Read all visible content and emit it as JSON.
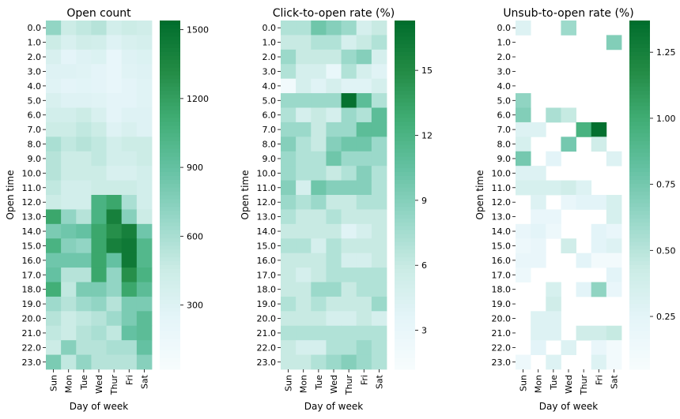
{
  "figure": {
    "rows": [
      "0.0",
      "1.0",
      "2.0",
      "3.0",
      "4.0",
      "5.0",
      "6.0",
      "7.0",
      "8.0",
      "9.0",
      "10.0",
      "11.0",
      "12.0",
      "13.0",
      "14.0",
      "15.0",
      "16.0",
      "17.0",
      "18.0",
      "19.0",
      "20.0",
      "21.0",
      "22.0",
      "23.0"
    ],
    "cols": [
      "Sun",
      "Mon",
      "Tue",
      "Wed",
      "Thur",
      "Fri",
      "Sat"
    ],
    "xlabel": "Day of week",
    "ylabel": "Open time",
    "colormap": [
      "#f7fcfd",
      "#e5f5f9",
      "#ccece6",
      "#99d8c9",
      "#66c2a4",
      "#41ae76",
      "#238b45",
      "#006d2c"
    ]
  },
  "chart_data": [
    {
      "type": "heatmap",
      "title": "Open count",
      "xlabel": "Day of week",
      "ylabel": "Open time",
      "vmin": 20,
      "vmax": 1540,
      "colorbar_ticks": [
        300,
        600,
        900,
        1200,
        1500
      ],
      "colorbar_tick_labels": [
        "300",
        "600",
        "900",
        "1200",
        "1500"
      ],
      "values": [
        [
          700,
          450,
          500,
          550,
          400,
          450,
          420
        ],
        [
          450,
          350,
          420,
          400,
          300,
          350,
          380
        ],
        [
          350,
          250,
          300,
          320,
          200,
          300,
          320
        ],
        [
          300,
          300,
          280,
          250,
          200,
          280,
          300
        ],
        [
          280,
          250,
          260,
          250,
          200,
          250,
          280
        ],
        [
          350,
          300,
          300,
          280,
          250,
          250,
          280
        ],
        [
          400,
          400,
          450,
          350,
          250,
          300,
          300
        ],
        [
          450,
          450,
          500,
          450,
          300,
          350,
          300
        ],
        [
          600,
          500,
          550,
          500,
          400,
          450,
          450
        ],
        [
          550,
          450,
          450,
          500,
          400,
          400,
          450
        ],
        [
          550,
          450,
          450,
          450,
          350,
          350,
          400
        ],
        [
          500,
          400,
          400,
          450,
          450,
          450,
          400
        ],
        [
          450,
          400,
          400,
          1050,
          1150,
          600,
          400
        ],
        [
          1150,
          700,
          550,
          1050,
          1400,
          750,
          450
        ],
        [
          800,
          850,
          900,
          1150,
          1300,
          1400,
          850
        ],
        [
          1050,
          750,
          700,
          1150,
          1400,
          1450,
          1000
        ],
        [
          850,
          850,
          850,
          1150,
          900,
          1450,
          1000
        ],
        [
          900,
          550,
          550,
          1150,
          700,
          1300,
          1050
        ],
        [
          1100,
          500,
          800,
          800,
          700,
          1150,
          950
        ],
        [
          650,
          550,
          650,
          700,
          550,
          800,
          800
        ],
        [
          550,
          450,
          500,
          550,
          650,
          800,
          950
        ],
        [
          500,
          450,
          550,
          600,
          500,
          900,
          950
        ],
        [
          450,
          750,
          550,
          550,
          600,
          600,
          900
        ],
        [
          800,
          500,
          700,
          550,
          550,
          550,
          750
        ]
      ]
    },
    {
      "type": "heatmap",
      "title": "Click-to-open rate (%)",
      "xlabel": "Day of week",
      "ylabel": "Open time",
      "vmin": 1.2,
      "vmax": 17.3,
      "colorbar_ticks": [
        3,
        6,
        9,
        12,
        15
      ],
      "colorbar_tick_labels": [
        "3",
        "6",
        "9",
        "12",
        "15"
      ],
      "values": [
        [
          7,
          7,
          10,
          9,
          8,
          5,
          6
        ],
        [
          6,
          6,
          7,
          7,
          5,
          6,
          7
        ],
        [
          8,
          6,
          6,
          6,
          8,
          9,
          5
        ],
        [
          7,
          5,
          5,
          3,
          7,
          5,
          4
        ],
        [
          2,
          5,
          4,
          5,
          4,
          4,
          5
        ],
        [
          8,
          8,
          8,
          8,
          17,
          11,
          7
        ],
        [
          7,
          5,
          6,
          5,
          8,
          7,
          11
        ],
        [
          8,
          8,
          6,
          8,
          8,
          11,
          11
        ],
        [
          9,
          7,
          6,
          9,
          10,
          10,
          8
        ],
        [
          8,
          7,
          7,
          10,
          8,
          8,
          8
        ],
        [
          8,
          7,
          7,
          6,
          7,
          9,
          7
        ],
        [
          9,
          5,
          10,
          9,
          9,
          9,
          7
        ],
        [
          8,
          7,
          8,
          6,
          6,
          7,
          7
        ],
        [
          7,
          6,
          6,
          7,
          6,
          6,
          6
        ],
        [
          6,
          6,
          6,
          6,
          4,
          5,
          6
        ],
        [
          7,
          7,
          5,
          7,
          6,
          6,
          6
        ],
        [
          6,
          6,
          6,
          7,
          5,
          5,
          6
        ],
        [
          6,
          5,
          6,
          7,
          7,
          7,
          7
        ],
        [
          6,
          6,
          8,
          8,
          6,
          7,
          7
        ],
        [
          7,
          6,
          7,
          6,
          6,
          6,
          8
        ],
        [
          6,
          6,
          6,
          5,
          5,
          6,
          5
        ],
        [
          7,
          7,
          7,
          7,
          7,
          7,
          7
        ],
        [
          6,
          5,
          5,
          7,
          7,
          8,
          7
        ],
        [
          6,
          6,
          7,
          8,
          9,
          8,
          7
        ]
      ]
    },
    {
      "type": "heatmap",
      "title": "Unsub-to-open rate (%)",
      "xlabel": "Day of week",
      "ylabel": "Open time",
      "vmin": 0.05,
      "vmax": 1.37,
      "colorbar_ticks": [
        0.25,
        0.5,
        0.75,
        1.0,
        1.25
      ],
      "colorbar_tick_labels": [
        "0.25",
        "0.50",
        "0.75",
        "1.00",
        "1.25"
      ],
      "values": [
        [
          0.3,
          null,
          null,
          0.6,
          null,
          null,
          null
        ],
        [
          null,
          null,
          null,
          null,
          null,
          null,
          0.7
        ],
        [
          null,
          null,
          null,
          null,
          null,
          null,
          null
        ],
        [
          null,
          null,
          null,
          null,
          null,
          null,
          null
        ],
        [
          null,
          null,
          null,
          null,
          null,
          null,
          null
        ],
        [
          0.65,
          null,
          null,
          null,
          null,
          null,
          null
        ],
        [
          0.7,
          null,
          0.55,
          0.45,
          null,
          null,
          null
        ],
        [
          0.3,
          0.3,
          null,
          null,
          0.95,
          1.35,
          null
        ],
        [
          0.35,
          null,
          null,
          0.75,
          null,
          0.4,
          null
        ],
        [
          0.75,
          null,
          0.25,
          null,
          null,
          null,
          0.3
        ],
        [
          0.3,
          0.3,
          null,
          null,
          null,
          null,
          null
        ],
        [
          0.35,
          0.35,
          0.35,
          0.4,
          0.3,
          null,
          null
        ],
        [
          null,
          0.3,
          null,
          0.2,
          0.25,
          0.25,
          0.35
        ],
        [
          null,
          0.2,
          0.2,
          null,
          null,
          null,
          0.35
        ],
        [
          0.2,
          0.25,
          0.15,
          null,
          null,
          0.25,
          0.2
        ],
        [
          0.15,
          0.2,
          null,
          0.4,
          null,
          0.25,
          0.3
        ],
        [
          0.2,
          0.2,
          null,
          null,
          0.25,
          0.1,
          0.1
        ],
        [
          0.15,
          null,
          null,
          null,
          null,
          null,
          0.25
        ],
        [
          null,
          null,
          0.35,
          null,
          0.25,
          0.65,
          0.2
        ],
        [
          null,
          null,
          0.4,
          null,
          null,
          null,
          null
        ],
        [
          null,
          0.3,
          0.3,
          null,
          null,
          null,
          null
        ],
        [
          null,
          0.3,
          0.3,
          null,
          0.4,
          0.4,
          0.45
        ],
        [
          null,
          0.25,
          null,
          0.3,
          null,
          0.2,
          0.1
        ],
        [
          0.15,
          null,
          0.3,
          null,
          null,
          0.3,
          0.1
        ]
      ]
    }
  ]
}
